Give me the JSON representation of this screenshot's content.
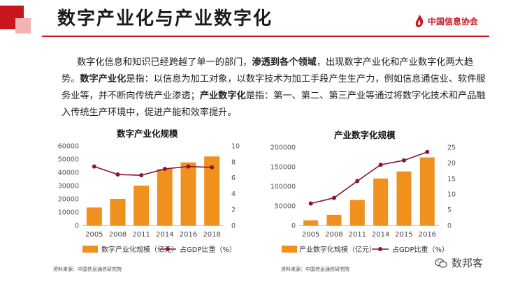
{
  "header": {
    "title": "数字产业化与产业数字化",
    "logo_text": "中国信息协会"
  },
  "intro": {
    "p1_a": "数字化信息和知识已经跨越了单一的部门，",
    "p1_b": "渗透到各个领域",
    "p1_c": "，出现数字产业化和产业数字化两大趋势。",
    "p1_d": "数字产业化",
    "p1_e": "是指：以信息为加工对象，以数字技术为加工手段产生生产力，例如信息通信业、软件服务业等，并不断向传统产业渗透；",
    "p1_f": "产业数字化",
    "p1_g": "是指：第一、第二、第三产业等通过将数字化技术和产品融入传统生产环境中，促进产能和效率提升。"
  },
  "colors": {
    "accent": "#c8161d",
    "bar": "#f0901e",
    "line": "#8a1538"
  },
  "chart_data": [
    {
      "type": "bar",
      "title": "数字产业化规模",
      "categories": [
        "2005",
        "2008",
        "2011",
        "2014",
        "2016",
        "2018"
      ],
      "series": [
        {
          "name": "数字产业化规模（亿元）",
          "type": "bar",
          "axis": "left",
          "values": [
            13500,
            20000,
            30000,
            42500,
            47500,
            52000
          ]
        },
        {
          "name": "占GDP比重（%）",
          "type": "line",
          "axis": "right",
          "values": [
            7.4,
            6.4,
            6.3,
            7.1,
            7.4,
            7.3
          ]
        }
      ],
      "y_left": {
        "ticks": [
          "0",
          "10000",
          "20000",
          "30000",
          "40000",
          "50000",
          "60000"
        ],
        "range": [
          0,
          60000
        ]
      },
      "y_right": {
        "ticks": [
          "0",
          "2",
          "4",
          "6",
          "8",
          "10"
        ],
        "range": [
          0,
          10
        ]
      },
      "legend": "bottom",
      "grid": false,
      "source": "资料来源：中国信息通信研究院"
    },
    {
      "type": "bar",
      "title": "产业数字化规模",
      "categories": [
        "2005",
        "2008",
        "2011",
        "2014",
        "2015",
        "2016"
      ],
      "series": [
        {
          "name": "产业数字化规模（亿元）",
          "type": "bar",
          "axis": "left",
          "values": [
            13000,
            27000,
            65000,
            120000,
            138000,
            174000
          ]
        },
        {
          "name": "占GDP比重（%）",
          "type": "line",
          "axis": "right",
          "values": [
            7.0,
            8.8,
            14.2,
            19.4,
            20.8,
            23.5
          ]
        }
      ],
      "y_left": {
        "ticks": [
          "0",
          "50000",
          "100000",
          "150000",
          "200000"
        ],
        "range": [
          0,
          200000
        ]
      },
      "y_right": {
        "ticks": [
          "0",
          "5",
          "10",
          "15",
          "20",
          "25"
        ],
        "range": [
          0,
          25
        ]
      },
      "legend": "bottom",
      "grid": false,
      "source": "资料来源：中国信息通信研究院"
    }
  ],
  "watermark": {
    "text": "数邦客",
    "icon": "wechat-icon"
  }
}
